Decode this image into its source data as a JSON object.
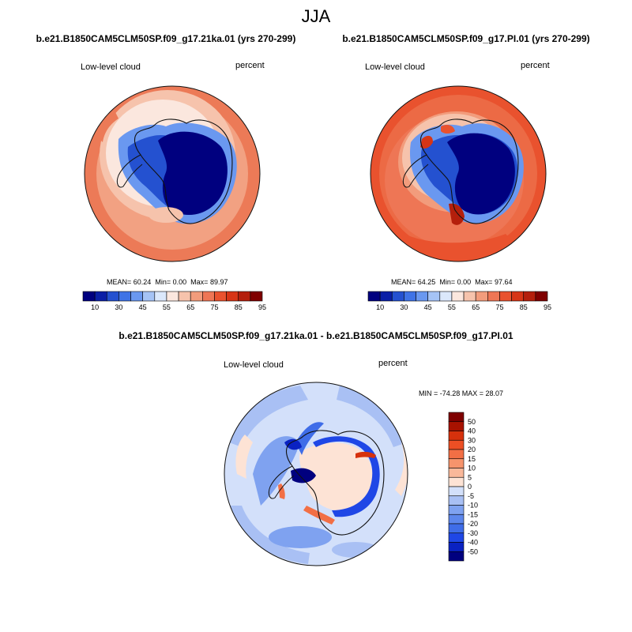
{
  "title": "JJA",
  "panels": [
    {
      "case_title": "b.e21.B1850CAM5CLM50SP.f09_g17.21ka.01 (yrs 270-299)",
      "variable": "Low-level cloud",
      "units": "percent",
      "mean_label": "MEAN=",
      "mean": "60.24",
      "min_label": "Min=",
      "min": "0.00",
      "max_label": "Max=",
      "max": "89.97"
    },
    {
      "case_title": "b.e21.B1850CAM5CLM50SP.f09_g17.PI.01 (yrs 270-299)",
      "variable": "Low-level cloud",
      "units": "percent",
      "mean_label": "MEAN=",
      "mean": "64.25",
      "min_label": "Min=",
      "min": "0.00",
      "max_label": "Max=",
      "max": "97.64"
    }
  ],
  "difference": {
    "title": "b.e21.B1850CAM5CLM50SP.f09_g17.21ka.01 - b.e21.B1850CAM5CLM50SP.f09_g17.PI.01",
    "variable": "Low-level cloud",
    "units": "percent",
    "minmax_text": "MIN = -74.28 MAX =  28.07"
  },
  "colors": {
    "field_levels": [
      "#00007f",
      "#0a1fa6",
      "#2451d0",
      "#3f73e6",
      "#6a98f0",
      "#a5c3f5",
      "#dbe8fb",
      "#fbe7de",
      "#f6c3ac",
      "#f29c7c",
      "#ee7655",
      "#e9522e",
      "#d73516",
      "#b41f0c",
      "#7f0000"
    ],
    "diff_levels": [
      "#00007f",
      "#0a22c2",
      "#1f47e6",
      "#3f6de8",
      "#5d87ec",
      "#7fa2f0",
      "#a9c0f4",
      "#d3e0fa",
      "#fde3d5",
      "#f9b89a",
      "#f6946c",
      "#f26f45",
      "#ec4f24",
      "#d6310c",
      "#a81200",
      "#7f0000"
    ]
  },
  "chart_data": [
    {
      "type": "heatmap",
      "projection": "south-polar-stereographic",
      "title": "b.e21.B1850CAM5CLM50SP.f09_g17.21ka.01 (yrs 270-299)",
      "field": "Low-level cloud",
      "units": "percent",
      "colorbar_ticks": [
        10,
        30,
        45,
        55,
        65,
        75,
        85,
        95
      ],
      "levels": [
        5,
        10,
        20,
        30,
        40,
        45,
        50,
        55,
        60,
        65,
        70,
        75,
        80,
        85,
        90,
        95
      ],
      "mean": 60.24,
      "min": 0.0,
      "max": 89.97
    },
    {
      "type": "heatmap",
      "projection": "south-polar-stereographic",
      "title": "b.e21.B1850CAM5CLM50SP.f09_g17.PI.01 (yrs 270-299)",
      "field": "Low-level cloud",
      "units": "percent",
      "colorbar_ticks": [
        10,
        30,
        45,
        55,
        65,
        75,
        85,
        95
      ],
      "levels": [
        5,
        10,
        20,
        30,
        40,
        45,
        50,
        55,
        60,
        65,
        70,
        75,
        80,
        85,
        90,
        95
      ],
      "mean": 64.25,
      "min": 0.0,
      "max": 97.64
    },
    {
      "type": "heatmap",
      "projection": "south-polar-stereographic",
      "title": "b.e21.B1850CAM5CLM50SP.f09_g17.21ka.01 - b.e21.B1850CAM5CLM50SP.f09_g17.PI.01",
      "field": "Low-level cloud",
      "units": "percent",
      "colorbar_ticks": [
        50,
        40,
        30,
        20,
        15,
        10,
        5,
        0,
        -5,
        -10,
        -15,
        -20,
        -30,
        -40,
        -50
      ],
      "min": -74.28,
      "max": 28.07
    }
  ]
}
